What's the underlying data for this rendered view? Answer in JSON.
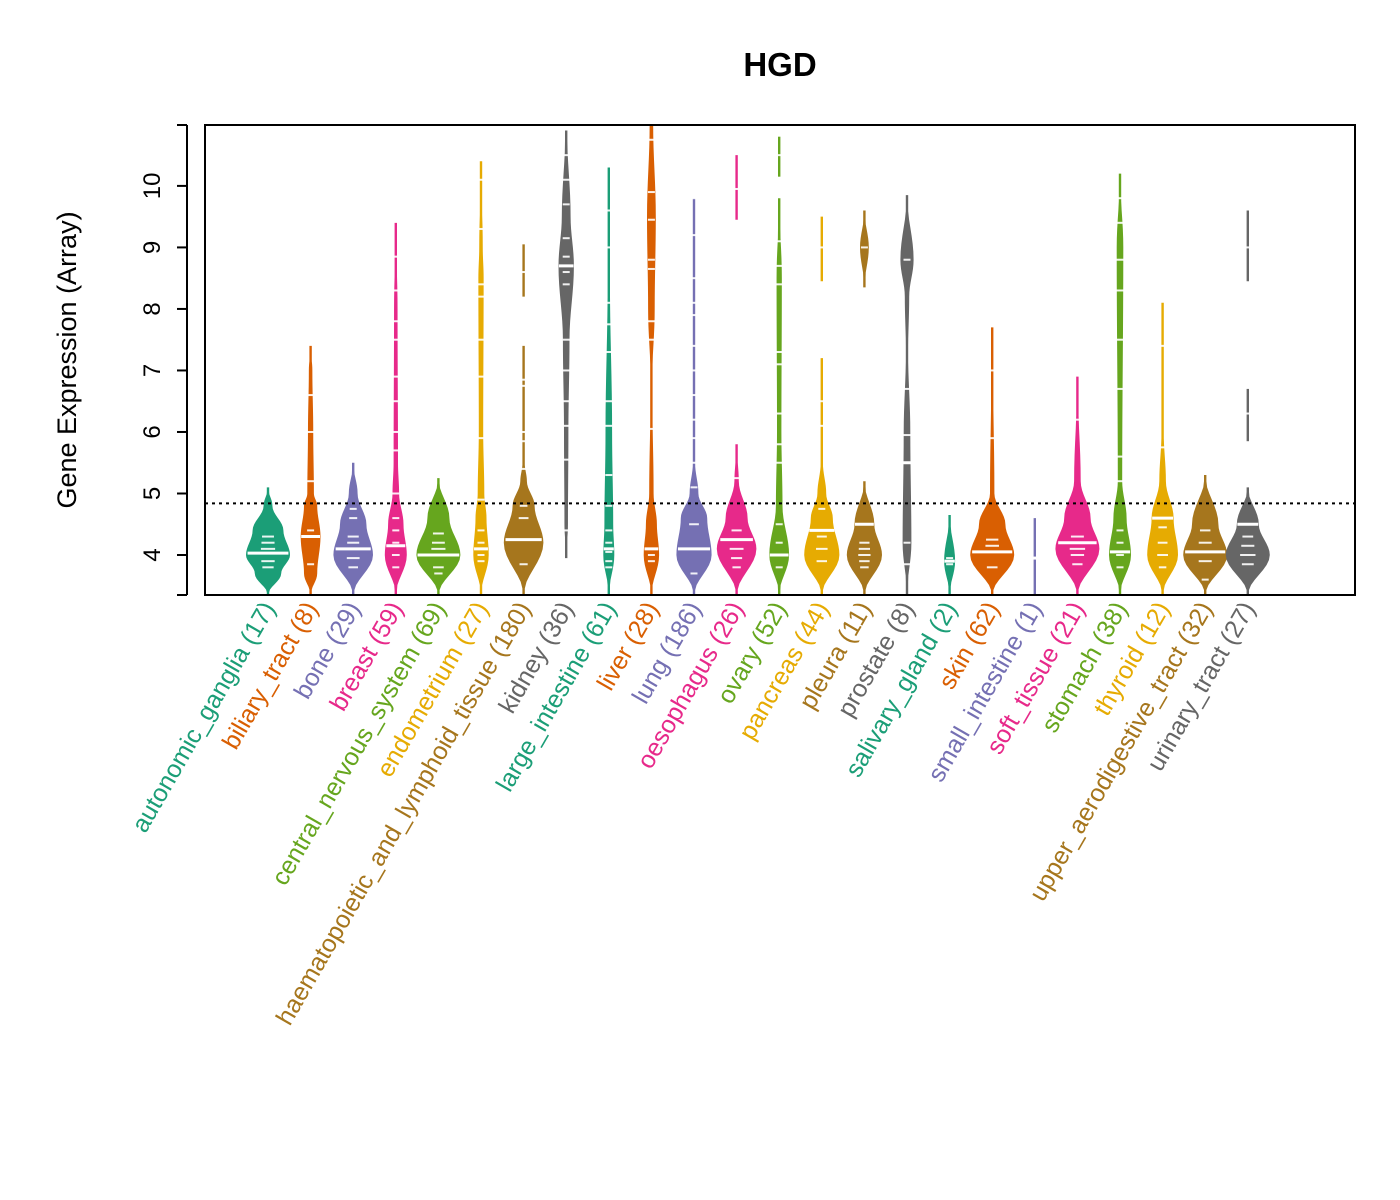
{
  "chart_data": {
    "type": "violin",
    "title": "HGD",
    "xlabel": "",
    "ylabel": "Gene Expression (Array)",
    "ylim": [
      3.35,
      10.99
    ],
    "yticks": [
      4,
      5,
      6,
      7,
      8,
      9,
      10
    ],
    "reference_line": 4.84,
    "grid": false,
    "legend": "none",
    "categories": [
      {
        "label": "autonomic_ganglia (17)",
        "color": "#1B9E77",
        "median": 4.03,
        "density": [
          [
            [
              3.35,
              0
            ],
            [
              3.7,
              0.6
            ],
            [
              4.0,
              1
            ],
            [
              4.4,
              0.7
            ],
            [
              4.8,
              0.2
            ],
            [
              5.1,
              0
            ]
          ]
        ],
        "points": [
          3.8,
          3.9,
          4.1,
          4.2,
          4.3
        ]
      },
      {
        "label": "biliary_tract (8)",
        "color": "#D95F02",
        "median": 4.3,
        "density": [
          [
            [
              3.35,
              0
            ],
            [
              3.7,
              0.3
            ],
            [
              4.3,
              0.45
            ],
            [
              4.8,
              0.3
            ],
            [
              5.0,
              0.15
            ],
            [
              6,
              0.12
            ],
            [
              7.0,
              0.08
            ],
            [
              7.4,
              0
            ]
          ]
        ],
        "points": [
          3.85,
          4.3,
          4.4,
          5.2,
          6.0,
          6.6
        ]
      },
      {
        "label": "bone (29)",
        "color": "#7570B3",
        "median": 4.1,
        "density": [
          [
            [
              3.35,
              0
            ],
            [
              4.0,
              0.9
            ],
            [
              4.5,
              0.6
            ],
            [
              5.0,
              0.2
            ],
            [
              5.5,
              0
            ]
          ]
        ],
        "points": [
          3.8,
          3.95,
          4.2,
          4.3,
          4.6,
          4.75
        ]
      },
      {
        "label": "breast (59)",
        "color": "#E7298A",
        "median": 4.15,
        "density": [
          [
            [
              3.35,
              0
            ],
            [
              4.0,
              0.5
            ],
            [
              4.5,
              0.35
            ],
            [
              5,
              0.15
            ],
            [
              5.5,
              0.1
            ],
            [
              8,
              0.08
            ],
            [
              9.4,
              0
            ]
          ]
        ],
        "points": [
          3.8,
          4.0,
          4.2,
          4.4,
          4.6,
          5.0,
          5.7,
          6.0,
          6.5,
          6.9,
          7.5,
          7.8,
          8.3,
          8.85
        ]
      },
      {
        "label": "central_nervous_system (69)",
        "color": "#66A61E",
        "median": 4.0,
        "density": [
          [
            [
              3.35,
              0
            ],
            [
              4.0,
              1
            ],
            [
              4.6,
              0.5
            ],
            [
              5.25,
              0
            ]
          ]
        ],
        "points": [
          3.7,
          3.8,
          4.1,
          4.2,
          4.35
        ]
      },
      {
        "label": "endometrium (27)",
        "color": "#E6AB02",
        "median": 4.1,
        "density": [
          [
            [
              3.35,
              0
            ],
            [
              4.0,
              0.35
            ],
            [
              4.6,
              0.25
            ],
            [
              5,
              0.15
            ],
            [
              6,
              0.1
            ],
            [
              8.5,
              0.12
            ],
            [
              9,
              0.08
            ],
            [
              10.4,
              0
            ]
          ]
        ],
        "points": [
          3.9,
          4.0,
          4.2,
          4.4,
          4.9,
          5.9,
          6.9,
          7.5,
          8.2,
          8.4,
          9.3,
          10.1
        ]
      },
      {
        "label": "haematopoietic_and_lymphoid_tissue (180)",
        "color": "#A6761D",
        "median": 4.25,
        "density": [
          [
            [
              3.35,
              0
            ],
            [
              4.2,
              0.9
            ],
            [
              4.8,
              0.5
            ],
            [
              5.2,
              0.15
            ],
            [
              5.5,
              0.05
            ],
            [
              7.4,
              0.02
            ]
          ],
          [
            [
              8.2,
              0.02
            ],
            [
              9.05,
              0.02
            ]
          ]
        ],
        "points": [
          3.85,
          4.6,
          4.8,
          5.4,
          5.85,
          6.0,
          6.75,
          6.85,
          8.6
        ]
      },
      {
        "label": "kidney (36)",
        "color": "#666666",
        "median": 8.7,
        "density": [
          [
            [
              3.95,
              0
            ],
            [
              4.5,
              0.08
            ],
            [
              6,
              0.1
            ],
            [
              7.5,
              0.15
            ],
            [
              8.7,
              0.35
            ],
            [
              9.5,
              0.2
            ],
            [
              10.9,
              0.04
            ]
          ]
        ],
        "points": [
          4.4,
          5.55,
          6.1,
          6.5,
          7.0,
          7.5,
          8.4,
          8.6,
          8.85,
          9.15,
          9.7,
          10.1,
          10.5
        ]
      },
      {
        "label": "large_intestine (61)",
        "color": "#1B9E77",
        "median": 4.1,
        "density": [
          [
            [
              3.35,
              0
            ],
            [
              4.0,
              0.25
            ],
            [
              4.5,
              0.2
            ],
            [
              6,
              0.15
            ],
            [
              8.5,
              0.05
            ],
            [
              10.3,
              0.02
            ]
          ]
        ],
        "points": [
          3.8,
          3.9,
          4.05,
          4.2,
          4.4,
          4.8,
          5.3,
          6.1,
          6.5,
          7.3,
          7.75,
          8.1,
          9.0,
          9.6
        ]
      },
      {
        "label": "liver (28)",
        "color": "#D95F02",
        "median": 4.1,
        "density": [
          [
            [
              3.35,
              0
            ],
            [
              4.0,
              0.35
            ],
            [
              4.5,
              0.25
            ],
            [
              5,
              0.1
            ],
            [
              6.8,
              0.03
            ],
            [
              8,
              0.15
            ],
            [
              9.5,
              0.2
            ],
            [
              11,
              0.08
            ]
          ]
        ],
        "points": [
          3.9,
          4.0,
          4.1,
          6.05,
          7.5,
          7.8,
          8.65,
          8.8,
          9.45,
          9.9,
          10.75
        ]
      },
      {
        "label": "lung (186)",
        "color": "#7570B3",
        "median": 4.1,
        "density": [
          [
            [
              3.35,
              0
            ],
            [
              4.0,
              0.8
            ],
            [
              4.6,
              0.6
            ],
            [
              5,
              0.2
            ],
            [
              5.5,
              0.05
            ],
            [
              9.8,
              0.02
            ]
          ]
        ],
        "points": [
          3.7,
          4.5,
          5.1,
          5.5,
          5.9,
          6.2,
          6.6,
          7.0,
          7.4,
          7.9,
          8.1,
          8.5,
          9.2,
          9.8
        ]
      },
      {
        "label": "oesophagus (26)",
        "color": "#E7298A",
        "median": 4.25,
        "density": [
          [
            [
              3.35,
              0
            ],
            [
              4.1,
              0.9
            ],
            [
              4.6,
              0.5
            ],
            [
              5.2,
              0.1
            ],
            [
              5.8,
              0
            ]
          ],
          [
            [
              9.45,
              0.03
            ],
            [
              10.5,
              0.03
            ]
          ]
        ],
        "points": [
          3.8,
          3.95,
          4.1,
          4.4,
          5.25,
          9.95
        ]
      },
      {
        "label": "ovary (52)",
        "color": "#66A61E",
        "median": 4.0,
        "density": [
          [
            [
              3.35,
              0
            ],
            [
              4.0,
              0.45
            ],
            [
              4.8,
              0.15
            ],
            [
              6,
              0.1
            ],
            [
              8.5,
              0.12
            ],
            [
              9.8,
              0
            ]
          ],
          [
            [
              10.15,
              0.03
            ],
            [
              10.8,
              0.03
            ]
          ]
        ],
        "points": [
          3.8,
          4.0,
          4.2,
          4.5,
          5.5,
          5.8,
          6.3,
          7.1,
          7.3,
          8.4,
          8.7,
          9.1,
          10.5
        ]
      },
      {
        "label": "pancreas (44)",
        "color": "#E6AB02",
        "median": 4.4,
        "density": [
          [
            [
              3.35,
              0
            ],
            [
              4.0,
              0.8
            ],
            [
              4.6,
              0.5
            ],
            [
              5.0,
              0.2
            ],
            [
              5.5,
              0.05
            ],
            [
              7.2,
              0
            ]
          ],
          [
            [
              8.45,
              0.03
            ],
            [
              9.5,
              0.03
            ]
          ]
        ],
        "points": [
          3.9,
          4.1,
          4.3,
          4.75,
          6.1,
          6.5,
          9.0
        ]
      },
      {
        "label": "pleura (11)",
        "color": "#A6761D",
        "median": 4.5,
        "density": [
          [
            [
              3.35,
              0
            ],
            [
              4.0,
              0.8
            ],
            [
              4.5,
              0.45
            ],
            [
              5.2,
              0
            ]
          ],
          [
            [
              8.35,
              0
            ],
            [
              9,
              0.2
            ],
            [
              9.6,
              0
            ]
          ]
        ],
        "points": [
          3.8,
          3.9,
          4.0,
          4.1,
          4.2,
          9.0
        ]
      },
      {
        "label": "prostate (8)",
        "color": "#666666",
        "median": 5.5,
        "density": [
          [
            [
              3.35,
              0
            ],
            [
              4.2,
              0.2
            ],
            [
              6,
              0.15
            ],
            [
              7.3,
              0.05
            ],
            [
              8.2,
              0.1
            ],
            [
              8.8,
              0.3
            ],
            [
              9.85,
              0
            ]
          ]
        ],
        "points": [
          3.85,
          4.2,
          5.5,
          5.95,
          6.7,
          8.8
        ]
      },
      {
        "label": "salivary_gland (2)",
        "color": "#1B9E77",
        "median": 3.9,
        "density": [
          [
            [
              3.35,
              0
            ],
            [
              3.9,
              0.25
            ],
            [
              4.65,
              0
            ]
          ]
        ],
        "points": [
          3.85,
          3.95
        ]
      },
      {
        "label": "skin (62)",
        "color": "#D95F02",
        "median": 4.05,
        "density": [
          [
            [
              3.35,
              0
            ],
            [
              4.0,
              1
            ],
            [
              4.5,
              0.6
            ],
            [
              5,
              0.1
            ],
            [
              7.7,
              0
            ]
          ]
        ],
        "points": [
          3.8,
          4.15,
          4.25,
          5.9,
          7.0
        ]
      },
      {
        "label": "small_intestine (1)",
        "color": "#7570B3",
        "median": 3.95,
        "density": [
          [
            [
              3.35,
              0.03
            ],
            [
              4.6,
              0.03
            ]
          ]
        ],
        "points": [
          3.95
        ]
      },
      {
        "label": "soft_tissue (21)",
        "color": "#E7298A",
        "median": 4.2,
        "density": [
          [
            [
              3.35,
              0
            ],
            [
              4.1,
              1
            ],
            [
              4.6,
              0.6
            ],
            [
              5.2,
              0.15
            ],
            [
              6.9,
              0
            ]
          ]
        ],
        "points": [
          3.85,
          4.0,
          4.1,
          4.3,
          6.2
        ]
      },
      {
        "label": "stomach (38)",
        "color": "#66A61E",
        "median": 4.05,
        "density": [
          [
            [
              3.35,
              0
            ],
            [
              4.0,
              0.5
            ],
            [
              4.6,
              0.3
            ],
            [
              5.2,
              0.1
            ],
            [
              9,
              0.15
            ],
            [
              10.2,
              0
            ]
          ]
        ],
        "points": [
          3.8,
          4.0,
          4.2,
          4.4,
          5.2,
          5.6,
          6.7,
          7.5,
          8.3,
          8.8,
          9.4,
          9.8
        ]
      },
      {
        "label": "thyroid (12)",
        "color": "#E6AB02",
        "median": 4.6,
        "density": [
          [
            [
              3.35,
              0
            ],
            [
              4.0,
              0.7
            ],
            [
              4.6,
              0.5
            ],
            [
              5.2,
              0.15
            ],
            [
              6,
              0.05
            ],
            [
              8.1,
              0
            ]
          ]
        ],
        "points": [
          3.8,
          4.0,
          4.2,
          4.45,
          5.75,
          7.4
        ]
      },
      {
        "label": "upper_aerodigestive_tract (32)",
        "color": "#A6761D",
        "median": 4.05,
        "density": [
          [
            [
              3.35,
              0
            ],
            [
              4.0,
              1
            ],
            [
              4.5,
              0.6
            ],
            [
              5.3,
              0
            ]
          ]
        ],
        "points": [
          3.6,
          3.9,
          4.2,
          4.4
        ]
      },
      {
        "label": "urinary_tract (27)",
        "color": "#666666",
        "median": 4.5,
        "density": [
          [
            [
              3.35,
              0
            ],
            [
              4.0,
              1
            ],
            [
              4.5,
              0.5
            ],
            [
              5.1,
              0
            ]
          ],
          [
            [
              5.85,
              0.03
            ],
            [
              6.7,
              0.03
            ]
          ],
          [
            [
              8.45,
              0.04
            ],
            [
              9.6,
              0.04
            ]
          ]
        ],
        "points": [
          3.85,
          4.0,
          4.15,
          4.3,
          6.3,
          9.0
        ]
      }
    ]
  }
}
